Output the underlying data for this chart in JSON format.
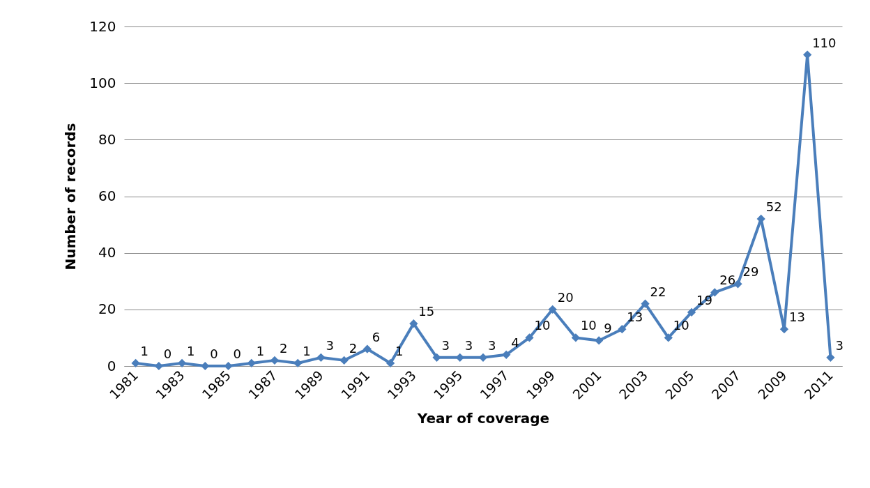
{
  "chart_data": {
    "type": "line",
    "xlabel": "Year of coverage",
    "ylabel": "Number of records",
    "categories": [
      "1981",
      null,
      "1983",
      null,
      "1985",
      null,
      "1987",
      null,
      "1989",
      null,
      "1991",
      null,
      "1993",
      null,
      "1995",
      null,
      "1997",
      null,
      "1999",
      null,
      "2001",
      null,
      "2003",
      null,
      "2005",
      null,
      "2007",
      null,
      "2009",
      null,
      "2011"
    ],
    "values": [
      1,
      0,
      1,
      0,
      0,
      1,
      2,
      1,
      3,
      2,
      6,
      1,
      15,
      3,
      3,
      3,
      4,
      10,
      20,
      10,
      9,
      13,
      22,
      10,
      19,
      26,
      29,
      52,
      13,
      110,
      3
    ],
    "color": "#4a7ebb",
    "ylim": [
      0,
      120
    ],
    "yticks": [
      0,
      20,
      40,
      60,
      80,
      100,
      120
    ],
    "grid": "y",
    "marker": "diamond",
    "line_style": "solid",
    "data_labels": true
  }
}
